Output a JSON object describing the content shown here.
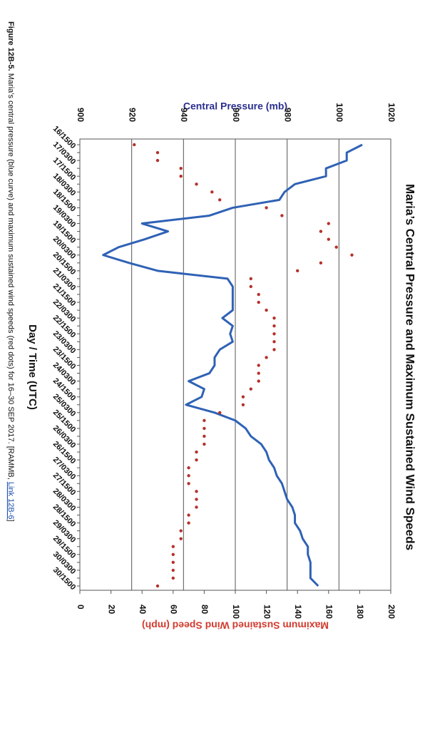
{
  "chart_data": {
    "type": "line_scatter",
    "title": "Maria’s Central Pressure and Maximum Sustained Wind Speeds",
    "y_label": "Central Pressure (mb)",
    "y2_label": "Maximum Sustained Wind Speed (mph)",
    "x_label": "Day / Time (UTC)",
    "caption": {
      "label": "Figure 12B-5.",
      "text": "Maria’s central pressure (blue curve) and maximum sustained wind speeds (red dots) for 16–30 SEP 2017. [RAMMB,",
      "link": "Link 12B-6",
      "end": "]"
    },
    "categories": [
      "16/1500",
      null,
      "17/0300",
      null,
      "17/1500",
      null,
      "18/0300",
      null,
      "18/1500",
      null,
      "19/0300",
      null,
      "19/1500",
      null,
      "20/0300",
      null,
      "20/1500",
      null,
      "21/0300",
      null,
      "21/1500",
      null,
      "22/0300",
      null,
      "22/1500",
      null,
      "23/0300",
      null,
      "23/1500",
      null,
      "24/0300",
      null,
      "24/1500",
      null,
      "25/0300",
      null,
      "25/1500",
      null,
      "26/0300",
      null,
      "26/1500",
      null,
      "27/0300",
      null,
      "27/1500",
      null,
      "28/0300",
      null,
      "28/1500",
      null,
      "29/0300",
      null,
      "29/1500",
      null,
      "30/0300",
      null,
      "30/1500"
    ],
    "series": [
      {
        "name": "Central Pressure",
        "kind": "line",
        "axis": "y",
        "color": "#2f62b5",
        "values": [
          1009,
          1003,
          1003,
          995,
          995,
          983,
          979,
          977,
          959,
          950,
          924,
          934,
          925,
          915,
          909,
          919,
          930,
          957,
          959,
          959,
          959,
          959,
          955,
          959,
          958,
          959,
          954,
          952,
          952,
          950,
          942,
          948,
          947,
          941,
          952,
          960,
          964,
          966,
          970,
          972,
          973,
          975,
          976,
          978,
          979,
          980,
          982,
          983,
          983,
          985,
          986,
          988,
          988,
          989,
          989,
          989,
          992
        ]
      },
      {
        "name": "Maximum Sustained Wind Speed",
        "kind": "scatter",
        "axis": "y2",
        "color": "#b3332b",
        "values": [
          35,
          50,
          50,
          65,
          65,
          75,
          85,
          90,
          120,
          130,
          160,
          155,
          160,
          165,
          175,
          155,
          140,
          110,
          110,
          115,
          115,
          120,
          125,
          125,
          125,
          125,
          125,
          120,
          115,
          115,
          115,
          110,
          105,
          105,
          90,
          80,
          80,
          80,
          80,
          75,
          75,
          70,
          70,
          70,
          75,
          75,
          75,
          70,
          70,
          65,
          65,
          60,
          60,
          60,
          60,
          60,
          50
        ]
      }
    ],
    "ylim": [
      900,
      1020
    ],
    "yticks": [
      900,
      920,
      940,
      960,
      980,
      1000,
      1020
    ],
    "y2lim": [
      0,
      200
    ],
    "y2ticks": [
      0,
      20,
      40,
      60,
      80,
      100,
      120,
      140,
      160,
      180,
      200
    ],
    "grid": true
  }
}
